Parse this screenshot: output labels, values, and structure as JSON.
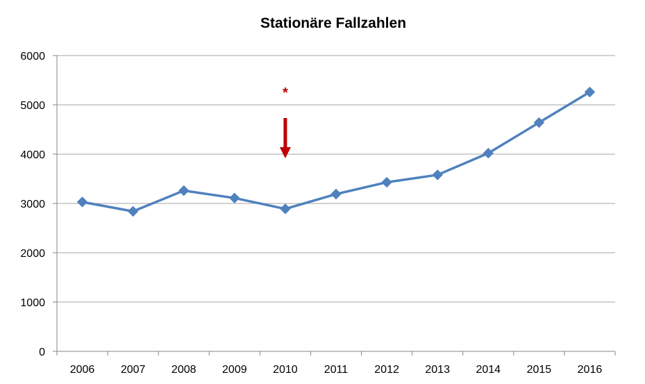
{
  "chart_data": {
    "type": "line",
    "title": "Stationäre Fallzahlen",
    "xlabel": "",
    "ylabel": "",
    "categories": [
      "2006",
      "2007",
      "2008",
      "2009",
      "2010",
      "2011",
      "2012",
      "2013",
      "2014",
      "2015",
      "2016"
    ],
    "series": [
      {
        "values": [
          3030,
          2840,
          3260,
          3110,
          2890,
          3190,
          3430,
          3580,
          4020,
          4640,
          5260
        ]
      }
    ],
    "ylim": [
      0,
      6000
    ],
    "yticks": [
      0,
      1000,
      2000,
      3000,
      4000,
      5000,
      6000
    ],
    "grid": "horizontal",
    "legend": "none",
    "annotations": [
      {
        "type": "arrow",
        "category": "2010",
        "text": "*",
        "color": "#c00000"
      }
    ],
    "colors": {
      "line": "#4f81bd",
      "grid": "#a6a6a6",
      "axis": "#868686",
      "annotation": "#c00000"
    }
  }
}
